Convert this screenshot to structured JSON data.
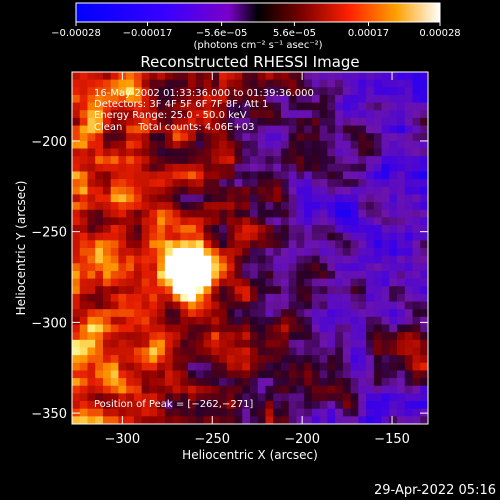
{
  "chart_data": {
    "type": "heatmap",
    "title": "Reconstructed RHESSI Image",
    "xlabel": "Heliocentric X (arcsec)",
    "ylabel": "Heliocentric Y (arcsec)",
    "xlim": [
      -328,
      -130
    ],
    "ylim": [
      -356,
      -162
    ],
    "x_ticks": [
      -300,
      -250,
      -200,
      -150
    ],
    "y_ticks": [
      -200,
      -250,
      -300,
      -350
    ],
    "x_tick_labels": [
      "−300",
      "−250",
      "−200",
      "−150"
    ],
    "y_tick_labels": [
      "−200",
      "−250",
      "−300",
      "−350"
    ],
    "colorbar": {
      "range": [
        -0.00028,
        0.00028
      ],
      "ticks": [
        -0.00028,
        -0.00017,
        -5.6e-05,
        5.6e-05,
        0.00017,
        0.00028
      ],
      "tick_labels": [
        "−0.00028",
        "−0.00017",
        "−5.6e−05",
        "5.6e−05",
        "0.00017",
        "0.00028"
      ],
      "unit_label": "(photons cm⁻² s⁻¹ asec⁻²)"
    },
    "peak": {
      "x": -262,
      "y": -271
    },
    "annotations": [
      "16-May-2002 01:33:36.000 to 01:39:36.000",
      "Detectors: 3F 4F 5F 6F 7F 8F, Att 1",
      "Energy Range: 25.0 - 50.0 keV",
      "Clean     Total counts: 4.06E+03"
    ],
    "peak_label": "Position of Peak = [−262,−271]",
    "colors": {
      "background": "#000000",
      "negative": "#0000ff",
      "zero": "#000000",
      "mid": "#cc0000",
      "high": "#ffaa00",
      "max": "#ffffff"
    }
  },
  "footer": {
    "timestamp": "29-Apr-2022 05:16"
  }
}
